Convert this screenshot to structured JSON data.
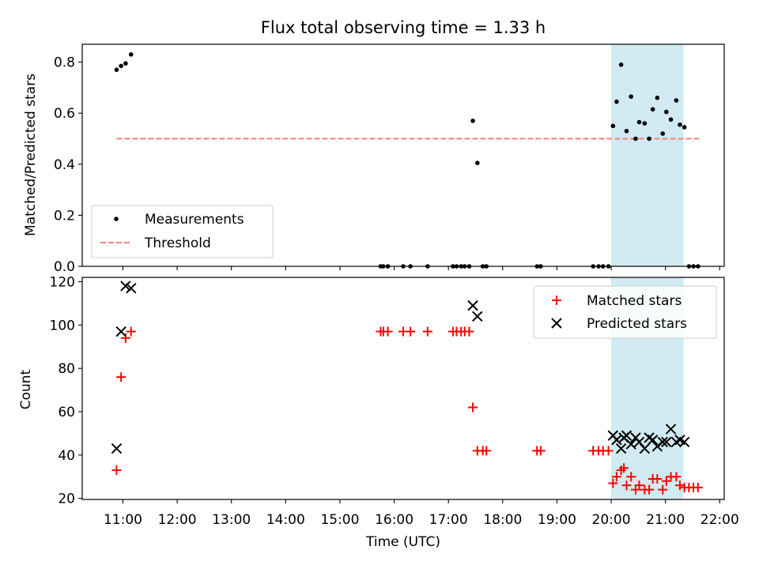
{
  "title": "Flux total observing time = 1.33 h",
  "highlight_window": {
    "start": "20:00",
    "end": "21:20",
    "color": "#add8e6"
  },
  "colors": {
    "measurements": "#000000",
    "threshold": "#ff7f7f",
    "matched": "#ff0000",
    "predicted": "#000000"
  },
  "chart_data": [
    {
      "type": "scatter",
      "ylabel": "Matched/Predicted stars",
      "xlim": [
        "10:15",
        "22:05"
      ],
      "ylim": [
        0,
        0.87
      ],
      "yticks": [
        "0.0",
        "0.2",
        "0.4",
        "0.6",
        "0.8"
      ],
      "legend": {
        "placement": "lower-left"
      },
      "series": [
        {
          "name": "Measurements",
          "marker": "dot",
          "points": [
            [
              "10:53",
              0.77
            ],
            [
              "10:58",
              0.785
            ],
            [
              "11:03",
              0.795
            ],
            [
              "11:09",
              0.83
            ],
            [
              "15:45",
              0
            ],
            [
              "15:48",
              0
            ],
            [
              "15:53",
              0
            ],
            [
              "16:10",
              0
            ],
            [
              "16:18",
              0
            ],
            [
              "16:37",
              0
            ],
            [
              "17:05",
              0
            ],
            [
              "17:09",
              0
            ],
            [
              "17:14",
              0
            ],
            [
              "17:18",
              0
            ],
            [
              "17:23",
              0
            ],
            [
              "17:27",
              0.57
            ],
            [
              "17:32",
              0.405
            ],
            [
              "17:38",
              0
            ],
            [
              "17:42",
              0
            ],
            [
              "18:38",
              0
            ],
            [
              "18:42",
              0
            ],
            [
              "19:40",
              0
            ],
            [
              "19:46",
              0
            ],
            [
              "19:51",
              0
            ],
            [
              "19:57",
              0
            ],
            [
              "20:02",
              0.55
            ],
            [
              "20:06",
              0.645
            ],
            [
              "20:11",
              0.79
            ],
            [
              "20:17",
              0.53
            ],
            [
              "20:22",
              0.665
            ],
            [
              "20:27",
              0.5
            ],
            [
              "20:31",
              0.565
            ],
            [
              "20:37",
              0.56
            ],
            [
              "20:42",
              0.5
            ],
            [
              "20:46",
              0.615
            ],
            [
              "20:51",
              0.66
            ],
            [
              "20:57",
              0.52
            ],
            [
              "21:01",
              0.605
            ],
            [
              "21:06",
              0.575
            ],
            [
              "21:12",
              0.65
            ],
            [
              "21:16",
              0.555
            ],
            [
              "21:21",
              0.545
            ],
            [
              "21:26",
              0
            ],
            [
              "21:31",
              0
            ],
            [
              "21:36",
              0
            ]
          ]
        },
        {
          "name": "Threshold",
          "line": "dashed",
          "points": [
            [
              "10:53",
              0.5
            ],
            [
              "21:40",
              0.5
            ]
          ]
        }
      ]
    },
    {
      "type": "scatter",
      "xlabel": "Time (UTC)",
      "ylabel": "Count",
      "xlim": [
        "10:15",
        "22:05"
      ],
      "ylim": [
        19.5,
        122
      ],
      "yticks": [
        "20",
        "40",
        "60",
        "80",
        "100",
        "120"
      ],
      "xticks": [
        "11:00",
        "12:00",
        "13:00",
        "14:00",
        "15:00",
        "16:00",
        "17:00",
        "18:00",
        "19:00",
        "20:00",
        "21:00",
        "22:00"
      ],
      "legend": {
        "placement": "top-right"
      },
      "series": [
        {
          "name": "Matched stars",
          "marker": "plus",
          "points": [
            [
              "10:53",
              33
            ],
            [
              "10:58",
              76
            ],
            [
              "11:03",
              94
            ],
            [
              "11:09",
              97
            ],
            [
              "15:45",
              97
            ],
            [
              "15:48",
              97
            ],
            [
              "15:53",
              97
            ],
            [
              "16:10",
              97
            ],
            [
              "16:18",
              97
            ],
            [
              "16:37",
              97
            ],
            [
              "17:05",
              97
            ],
            [
              "17:09",
              97
            ],
            [
              "17:14",
              97
            ],
            [
              "17:18",
              97
            ],
            [
              "17:23",
              97
            ],
            [
              "17:27",
              62
            ],
            [
              "17:32",
              42
            ],
            [
              "17:38",
              42
            ],
            [
              "17:42",
              42
            ],
            [
              "18:38",
              42
            ],
            [
              "18:42",
              42
            ],
            [
              "19:40",
              42
            ],
            [
              "19:46",
              42
            ],
            [
              "19:51",
              42
            ],
            [
              "19:57",
              42
            ],
            [
              "20:02",
              27
            ],
            [
              "20:06",
              30
            ],
            [
              "20:11",
              33
            ],
            [
              "20:14",
              34
            ],
            [
              "20:17",
              26
            ],
            [
              "20:22",
              30
            ],
            [
              "20:27",
              24
            ],
            [
              "20:31",
              26
            ],
            [
              "20:37",
              24
            ],
            [
              "20:42",
              24
            ],
            [
              "20:46",
              29
            ],
            [
              "20:51",
              29
            ],
            [
              "20:57",
              24
            ],
            [
              "21:01",
              28
            ],
            [
              "21:06",
              30
            ],
            [
              "21:12",
              30
            ],
            [
              "21:16",
              26
            ],
            [
              "21:21",
              25
            ],
            [
              "21:26",
              25
            ],
            [
              "21:31",
              25
            ],
            [
              "21:36",
              25
            ]
          ]
        },
        {
          "name": "Predicted stars",
          "marker": "x",
          "points": [
            [
              "10:53",
              43
            ],
            [
              "10:58",
              97
            ],
            [
              "11:03",
              118
            ],
            [
              "11:09",
              117
            ],
            [
              "17:27",
              109
            ],
            [
              "17:32",
              104
            ],
            [
              "20:02",
              49
            ],
            [
              "20:06",
              47
            ],
            [
              "20:11",
              43
            ],
            [
              "20:14",
              48
            ],
            [
              "20:17",
              49
            ],
            [
              "20:22",
              45
            ],
            [
              "20:27",
              48
            ],
            [
              "20:31",
              46
            ],
            [
              "20:37",
              43
            ],
            [
              "20:42",
              48
            ],
            [
              "20:46",
              47
            ],
            [
              "20:51",
              44
            ],
            [
              "20:57",
              46
            ],
            [
              "21:01",
              46
            ],
            [
              "21:06",
              52
            ],
            [
              "21:12",
              46
            ],
            [
              "21:16",
              47
            ],
            [
              "21:21",
              46
            ]
          ]
        }
      ]
    }
  ]
}
